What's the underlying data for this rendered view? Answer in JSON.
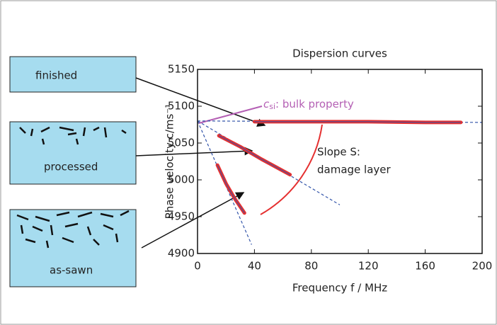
{
  "chart_data": {
    "type": "line",
    "title": "Dispersion curves",
    "x_label": "Frequency f / MHz",
    "y_label": "Phase velocity c/ms⁻¹",
    "xlim": [
      0,
      200
    ],
    "xticks": [
      0,
      40,
      80,
      120,
      160,
      200
    ],
    "ylim": [
      4900,
      5150
    ],
    "yticks": [
      4900,
      4950,
      5000,
      5050,
      5100,
      5150
    ],
    "series": [
      {
        "name": "finished",
        "color": "#e53030",
        "x": [
          40,
          80,
          120,
          160,
          185
        ],
        "values": [
          5079,
          5079,
          5079,
          5078,
          5078
        ]
      },
      {
        "name": "processed",
        "color": "#e53030",
        "x": [
          15,
          30,
          45,
          65
        ],
        "values": [
          5060,
          5045,
          5028,
          5007
        ]
      },
      {
        "name": "as-sawn",
        "color": "#e53030",
        "x": [
          14,
          20,
          26,
          33
        ],
        "values": [
          5020,
          4995,
          4975,
          4955
        ]
      }
    ],
    "fit_color": "#3355aa",
    "fits": [
      {
        "x": [
          0,
          200
        ],
        "values": [
          5080,
          5078
        ]
      },
      {
        "x": [
          0,
          100
        ],
        "values": [
          5080,
          4966
        ]
      },
      {
        "x": [
          0,
          38
        ],
        "values": [
          5080,
          4912
        ]
      }
    ],
    "bulk_annotation": {
      "symbol": "c",
      "subscript": "si",
      "text": ": bulk property"
    },
    "slope_annotation": [
      "Slope S:",
      "damage layer"
    ]
  }
}
